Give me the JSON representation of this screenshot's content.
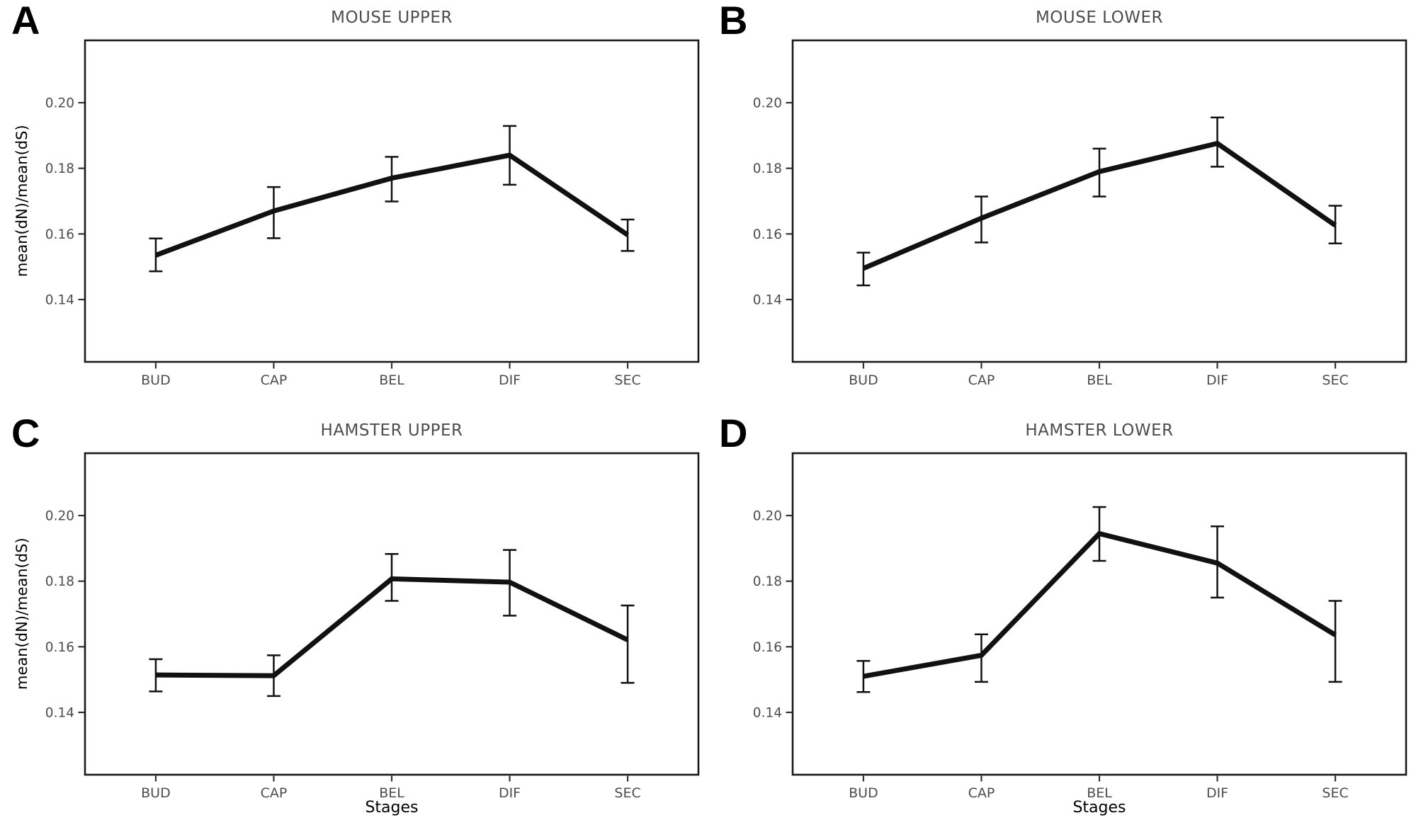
{
  "colors": {
    "line": "#111111",
    "border": "#1a1a1a",
    "tick": "#333333",
    "tick_label": "#4d4d4d",
    "title": "#4d4d4d",
    "axis_title": "#000000"
  },
  "panels": [
    {
      "letter": "A",
      "title": "MOUSE UPPER",
      "y_axis_title": "mean(dN)/mean(dS)",
      "x_axis_title": ""
    },
    {
      "letter": "B",
      "title": "MOUSE LOWER",
      "y_axis_title": "",
      "x_axis_title": ""
    },
    {
      "letter": "C",
      "title": "HAMSTER UPPER",
      "y_axis_title": "mean(dN)/mean(dS)",
      "x_axis_title": "Stages"
    },
    {
      "letter": "D",
      "title": "HAMSTER LOWER",
      "y_axis_title": "",
      "x_axis_title": "Stages"
    }
  ],
  "chart_data": [
    {
      "type": "line",
      "panel": "A",
      "title": "MOUSE UPPER",
      "categories": [
        "BUD",
        "CAP",
        "BEL",
        "DIF",
        "SEC"
      ],
      "values": [
        0.1535,
        0.167,
        0.177,
        0.184,
        0.1597
      ],
      "error_low": [
        0.1486,
        0.1587,
        0.1699,
        0.175,
        0.1548
      ],
      "error_high": [
        0.1586,
        0.1743,
        0.1835,
        0.1929,
        0.1644
      ],
      "xlabel": "",
      "ylabel": "mean(dN)/mean(dS)",
      "ytick_values": [
        0.14,
        0.16,
        0.18,
        0.2
      ],
      "ytick_labels": [
        "0.14",
        "0.16",
        "0.18",
        "0.20"
      ],
      "ylim": [
        0.121,
        0.219
      ],
      "grid": false,
      "error_bars": true,
      "legend": "none"
    },
    {
      "type": "line",
      "panel": "B",
      "title": "MOUSE LOWER",
      "categories": [
        "BUD",
        "CAP",
        "BEL",
        "DIF",
        "SEC"
      ],
      "values": [
        0.1495,
        0.1648,
        0.179,
        0.1876,
        0.1626
      ],
      "error_low": [
        0.1443,
        0.1574,
        0.1714,
        0.1805,
        0.1571
      ],
      "error_high": [
        0.1543,
        0.1714,
        0.186,
        0.1955,
        0.1686
      ],
      "xlabel": "",
      "ylabel": "",
      "ytick_values": [
        0.14,
        0.16,
        0.18,
        0.2
      ],
      "ytick_labels": [
        "0.14",
        "0.16",
        "0.18",
        "0.20"
      ],
      "ylim": [
        0.121,
        0.219
      ],
      "grid": false,
      "error_bars": true,
      "legend": "none"
    },
    {
      "type": "line",
      "panel": "C",
      "title": "HAMSTER UPPER",
      "categories": [
        "BUD",
        "CAP",
        "BEL",
        "DIF",
        "SEC"
      ],
      "values": [
        0.1514,
        0.1512,
        0.1807,
        0.1797,
        0.1621
      ],
      "error_low": [
        0.1464,
        0.145,
        0.174,
        0.1695,
        0.149
      ],
      "error_high": [
        0.1562,
        0.1574,
        0.1883,
        0.1895,
        0.1726
      ],
      "xlabel": "Stages",
      "ylabel": "mean(dN)/mean(dS)",
      "ytick_values": [
        0.14,
        0.16,
        0.18,
        0.2
      ],
      "ytick_labels": [
        "0.14",
        "0.16",
        "0.18",
        "0.20"
      ],
      "ylim": [
        0.121,
        0.219
      ],
      "grid": false,
      "error_bars": true,
      "legend": "none"
    },
    {
      "type": "line",
      "panel": "D",
      "title": "HAMSTER LOWER",
      "categories": [
        "BUD",
        "CAP",
        "BEL",
        "DIF",
        "SEC"
      ],
      "values": [
        0.151,
        0.1574,
        0.1945,
        0.1855,
        0.1636
      ],
      "error_low": [
        0.1462,
        0.1493,
        0.1862,
        0.175,
        0.1493
      ],
      "error_high": [
        0.1557,
        0.1638,
        0.2026,
        0.1967,
        0.174
      ],
      "xlabel": "Stages",
      "ylabel": "",
      "ytick_values": [
        0.14,
        0.16,
        0.18,
        0.2
      ],
      "ytick_labels": [
        "0.14",
        "0.16",
        "0.18",
        "0.20"
      ],
      "ylim": [
        0.121,
        0.219
      ],
      "grid": false,
      "error_bars": true,
      "legend": "none"
    }
  ]
}
